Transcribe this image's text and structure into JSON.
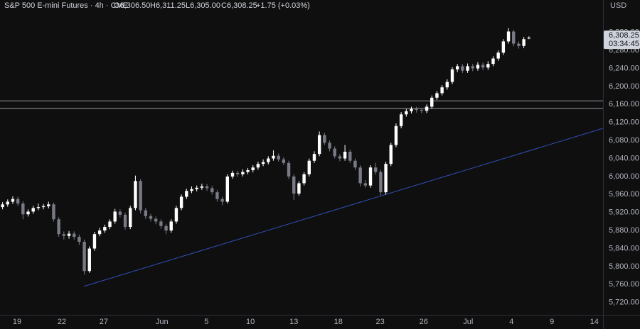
{
  "chart_data": {
    "type": "candlestick",
    "title": "S&P 500 E-mini Futures · 4h · CME",
    "ohlc_labels": [
      "O6,306.50",
      "H6,311.25",
      "L6,305.00",
      "C6,308.25"
    ],
    "change_label": "+1.75 (+0.03%)",
    "currency": "USD",
    "last_price_label": "6,308.25",
    "countdown": "03:34:45",
    "up_color": "#ffffff",
    "down_color": "#787b86",
    "open": [
      5932,
      5938,
      5944,
      5950,
      5940,
      5916,
      5922,
      5930,
      5932,
      5934,
      5938,
      5905,
      5872,
      5868,
      5873,
      5866,
      5855,
      5790,
      5840,
      5872,
      5880,
      5888,
      5900,
      5922,
      5915,
      5888,
      5930,
      5990,
      5925,
      5912,
      5906,
      5900,
      5890,
      5880,
      5900,
      5930,
      5955,
      5968,
      5972,
      5975,
      5978,
      5974,
      5965,
      5950,
      5944,
      6000,
      6008,
      6005,
      6010,
      6014,
      6020,
      6028,
      6032,
      6040,
      6046,
      6038,
      6030,
      6000,
      5962,
      5985,
      6005,
      6035,
      6050,
      6092,
      6075,
      6062,
      6045,
      6040,
      6055,
      6035,
      6020,
      5985,
      5980,
      6020,
      6010,
      5965,
      6028,
      6070,
      6112,
      6138,
      6145,
      6150,
      6148,
      6146,
      6155,
      6175,
      6185,
      6198,
      6210,
      6238,
      6245,
      6235,
      6245,
      6240,
      6248,
      6242,
      6250,
      6262,
      6275,
      6300,
      6322,
      6295,
      6290,
      6306.5
    ],
    "high": [
      5943,
      5949,
      5956,
      5955,
      5945,
      5927,
      5935,
      5940,
      5939,
      5944,
      5942,
      5910,
      5878,
      5879,
      5878,
      5871,
      5860,
      5845,
      5877,
      5886,
      5893,
      5905,
      5928,
      5927,
      5920,
      5935,
      6002,
      5994,
      5930,
      5917,
      5911,
      5905,
      5895,
      5905,
      5935,
      5960,
      5973,
      5978,
      5980,
      5984,
      5983,
      5979,
      5970,
      5955,
      6005,
      6013,
      6013,
      6016,
      6019,
      6025,
      6033,
      6038,
      6045,
      6058,
      6051,
      6043,
      6035,
      6005,
      5990,
      6010,
      6040,
      6056,
      6100,
      6097,
      6080,
      6067,
      6050,
      6070,
      6060,
      6040,
      6025,
      5992,
      6025,
      6030,
      6015,
      6033,
      6075,
      6118,
      6143,
      6150,
      6155,
      6155,
      6152,
      6160,
      6180,
      6190,
      6203,
      6216,
      6243,
      6250,
      6250,
      6251,
      6250,
      6254,
      6253,
      6256,
      6267,
      6280,
      6305,
      6330,
      6326,
      6300,
      6310,
      6311.25
    ],
    "low": [
      5927,
      5933,
      5939,
      5935,
      5905,
      5911,
      5917,
      5925,
      5927,
      5929,
      5900,
      5866,
      5860,
      5862,
      5860,
      5848,
      5782,
      5786,
      5835,
      5867,
      5875,
      5883,
      5895,
      5909,
      5882,
      5883,
      5925,
      5918,
      5906,
      5900,
      5894,
      5884,
      5872,
      5875,
      5895,
      5925,
      5950,
      5963,
      5967,
      5970,
      5968,
      5960,
      5944,
      5936,
      5940,
      5995,
      5999,
      6000,
      6005,
      6009,
      6015,
      6023,
      6027,
      6035,
      6033,
      6025,
      5994,
      5948,
      5957,
      5980,
      6000,
      6030,
      6045,
      6070,
      6056,
      6040,
      6034,
      6035,
      6030,
      6014,
      5978,
      5975,
      5975,
      6004,
      5958,
      5960,
      6023,
      6065,
      6107,
      6133,
      6140,
      6142,
      6140,
      6141,
      6150,
      6170,
      6180,
      6193,
      6205,
      6232,
      6230,
      6230,
      6234,
      6235,
      6236,
      6237,
      6245,
      6257,
      6270,
      6295,
      6289,
      6284,
      6285,
      6305
    ],
    "close": [
      5938,
      5944,
      5950,
      5940,
      5916,
      5922,
      5930,
      5932,
      5934,
      5938,
      5905,
      5872,
      5868,
      5873,
      5866,
      5855,
      5790,
      5840,
      5872,
      5880,
      5888,
      5900,
      5922,
      5915,
      5888,
      5930,
      5990,
      5925,
      5912,
      5906,
      5900,
      5890,
      5880,
      5900,
      5930,
      5955,
      5968,
      5972,
      5975,
      5978,
      5974,
      5965,
      5950,
      5944,
      6000,
      6008,
      6005,
      6010,
      6014,
      6020,
      6028,
      6032,
      6040,
      6046,
      6038,
      6030,
      6000,
      5962,
      5985,
      6005,
      6035,
      6050,
      6092,
      6075,
      6062,
      6045,
      6040,
      6055,
      6035,
      6020,
      5985,
      5980,
      6020,
      6010,
      5965,
      6028,
      6070,
      6112,
      6138,
      6145,
      6150,
      6148,
      6146,
      6155,
      6175,
      6185,
      6198,
      6210,
      6238,
      6245,
      6235,
      6245,
      6240,
      6248,
      6242,
      6250,
      6262,
      6275,
      6300,
      6322,
      6295,
      6290,
      6305,
      6308.25
    ],
    "hlines": [
      6168,
      6151
    ],
    "hline_color": "#9598a1",
    "trendline": {
      "x": [
        16.4,
        118
      ],
      "y": [
        5756,
        6107
      ],
      "color": "#2f4fb8"
    },
    "xlim": [
      0,
      118
    ],
    "xticks": [
      {
        "value": 3.34,
        "label": "19"
      },
      {
        "value": 12.1,
        "label": "22"
      },
      {
        "value": 20.3,
        "label": "27"
      },
      {
        "value": 31.7,
        "label": "Jun"
      },
      {
        "value": 40.4,
        "label": "5"
      },
      {
        "value": 49.0,
        "label": "10"
      },
      {
        "value": 57.5,
        "label": "13"
      },
      {
        "value": 66.2,
        "label": "18"
      },
      {
        "value": 74.4,
        "label": "23"
      },
      {
        "value": 82.9,
        "label": "26"
      },
      {
        "value": 91.6,
        "label": "Jul"
      },
      {
        "value": 100.1,
        "label": "4"
      },
      {
        "value": 108.0,
        "label": "9"
      },
      {
        "value": 116.3,
        "label": "14"
      }
    ],
    "ylim": [
      5692,
      6392
    ],
    "yticks": [
      {
        "value": 5720,
        "label": "5,720.00"
      },
      {
        "value": 5760,
        "label": "5,760.00"
      },
      {
        "value": 5800,
        "label": "5,800.00"
      },
      {
        "value": 5840,
        "label": "5,840.00"
      },
      {
        "value": 5880,
        "label": "5,880.00"
      },
      {
        "value": 5920,
        "label": "5,920.00"
      },
      {
        "value": 5960,
        "label": "5,960.00"
      },
      {
        "value": 6000,
        "label": "6,000.00"
      },
      {
        "value": 6040,
        "label": "6,040.00"
      },
      {
        "value": 6080,
        "label": "6,080.00"
      },
      {
        "value": 6120,
        "label": "6,120.00"
      },
      {
        "value": 6160,
        "label": "6,160.00"
      },
      {
        "value": 6200,
        "label": "6,200.00"
      },
      {
        "value": 6240,
        "label": "6,240.00"
      },
      {
        "value": 6280,
        "label": "6,280.00"
      },
      {
        "value": 6320,
        "label": "6,320.00"
      }
    ],
    "grid": false
  }
}
